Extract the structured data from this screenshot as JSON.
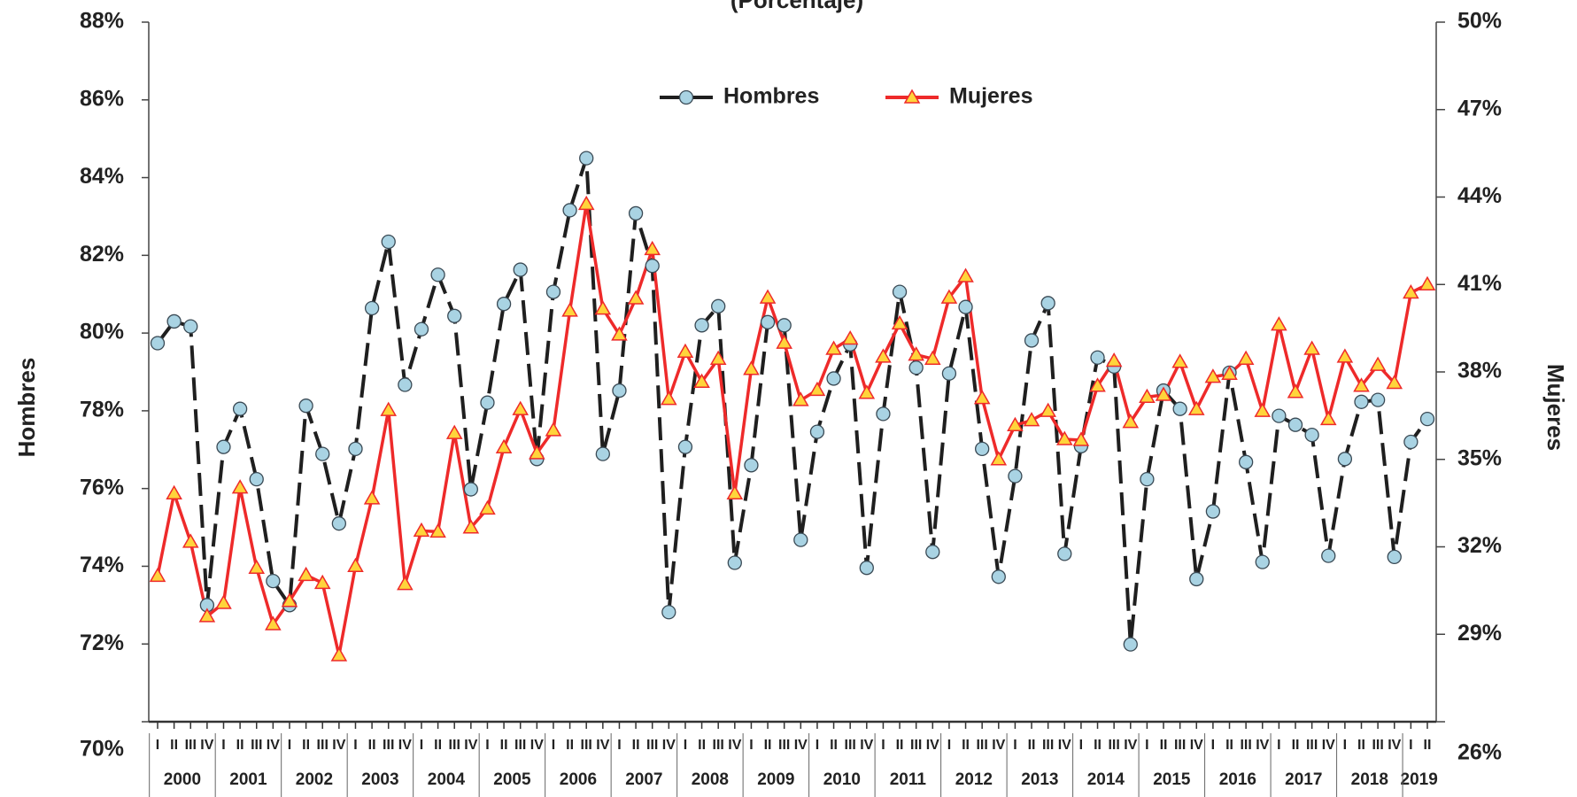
{
  "chart_data": {
    "type": "line",
    "title": "(Porcentaje)",
    "y_label": "Hombres",
    "y2_label": "Mujeres",
    "categories": [
      "I",
      "II",
      "III",
      "IV",
      "I",
      "II",
      "III",
      "IV",
      "I",
      "II",
      "III",
      "IV",
      "I",
      "II",
      "III",
      "IV",
      "I",
      "II",
      "III",
      "IV",
      "I",
      "II",
      "III",
      "IV",
      "I",
      "II",
      "III",
      "IV",
      "I",
      "II",
      "III",
      "IV",
      "I",
      "II",
      "III",
      "IV",
      "I",
      "II",
      "III",
      "IV",
      "I",
      "II",
      "III",
      "IV",
      "I",
      "II",
      "III",
      "IV",
      "I",
      "II",
      "III",
      "IV",
      "I",
      "II",
      "III",
      "IV",
      "I",
      "II",
      "III",
      "IV",
      "I",
      "II",
      "III",
      "IV",
      "I",
      "II",
      "III",
      "IV",
      "I",
      "II",
      "III",
      "IV",
      "I",
      "II",
      "III",
      "IV",
      "I",
      "II"
    ],
    "years": [
      "2000",
      "2001",
      "2002",
      "2003",
      "2004",
      "2005",
      "2006",
      "2007",
      "2008",
      "2009",
      "2010",
      "2011",
      "2012",
      "2013",
      "2014",
      "2015",
      "2016",
      "2017",
      "2018",
      "2019"
    ],
    "series": [
      {
        "name": "Hombres",
        "color": "#1f1f1f",
        "marker_color": "#a9d3e3",
        "values": [
          79.74,
          80.3,
          80.17,
          73.0,
          77.07,
          78.05,
          76.24,
          73.62,
          73.0,
          78.13,
          76.89,
          75.1,
          77.02,
          80.64,
          82.35,
          78.67,
          80.1,
          81.5,
          80.44,
          75.98,
          78.21,
          80.75,
          81.63,
          76.76,
          81.06,
          83.16,
          84.5,
          76.89,
          78.52,
          83.08,
          81.73,
          72.82,
          77.07,
          80.2,
          80.69,
          74.09,
          76.6,
          80.28,
          80.2,
          74.68,
          77.46,
          78.83,
          79.71,
          73.96,
          77.92,
          81.06,
          79.11,
          74.37,
          78.96,
          80.67,
          77.02,
          73.73,
          76.32,
          79.81,
          80.77,
          74.32,
          77.09,
          79.37,
          79.14,
          71.99,
          76.24,
          78.52,
          78.05,
          73.67,
          75.41,
          78.98,
          76.68,
          74.11,
          77.87,
          77.64,
          77.38,
          74.27,
          76.76,
          78.23,
          78.28,
          74.24,
          77.2,
          77.79
        ]
      },
      {
        "name": "Mujeres",
        "color": "#ee2a2a",
        "marker_color": "#ffd43b",
        "axis": "y2",
        "values": [
          31.0,
          33.83,
          32.17,
          29.62,
          30.07,
          34.03,
          31.28,
          29.34,
          30.14,
          31.03,
          30.76,
          28.28,
          31.34,
          33.66,
          36.69,
          30.72,
          32.55,
          32.52,
          35.9,
          32.66,
          33.31,
          35.41,
          36.72,
          35.21,
          36.0,
          40.1,
          43.76,
          40.17,
          39.28,
          40.52,
          42.21,
          37.07,
          38.69,
          37.66,
          38.45,
          33.83,
          38.1,
          40.55,
          39.0,
          37.03,
          37.38,
          38.79,
          39.14,
          37.28,
          38.52,
          39.66,
          38.59,
          38.45,
          40.55,
          41.28,
          37.1,
          35.0,
          36.17,
          36.34,
          36.66,
          35.69,
          35.66,
          37.52,
          38.38,
          36.28,
          37.14,
          37.21,
          38.34,
          36.72,
          37.83,
          37.93,
          38.45,
          36.66,
          39.62,
          37.31,
          38.79,
          36.38,
          38.52,
          37.52,
          38.24,
          37.62,
          40.72,
          41.0
        ]
      }
    ],
    "ylim": [
      70,
      88
    ],
    "yticks": [
      {
        "value": 70,
        "label": "70%"
      },
      {
        "value": 72,
        "label": "72%"
      },
      {
        "value": 74,
        "label": "74%"
      },
      {
        "value": 76,
        "label": "76%"
      },
      {
        "value": 78,
        "label": "78%"
      },
      {
        "value": 80,
        "label": "80%"
      },
      {
        "value": 82,
        "label": "82%"
      },
      {
        "value": 84,
        "label": "84%"
      },
      {
        "value": 86,
        "label": "86%"
      },
      {
        "value": 88,
        "label": "88%"
      }
    ],
    "y2lim": [
      26,
      50
    ],
    "y2ticks": [
      {
        "value": 26,
        "label": "26%"
      },
      {
        "value": 29,
        "label": "29%"
      },
      {
        "value": 32,
        "label": "32%"
      },
      {
        "value": 35,
        "label": "35%"
      },
      {
        "value": 38,
        "label": "38%"
      },
      {
        "value": 41,
        "label": "41%"
      },
      {
        "value": 44,
        "label": "44%"
      },
      {
        "value": 47,
        "label": "47%"
      },
      {
        "value": 50,
        "label": "50%"
      }
    ],
    "legend": "top",
    "grid": false
  }
}
